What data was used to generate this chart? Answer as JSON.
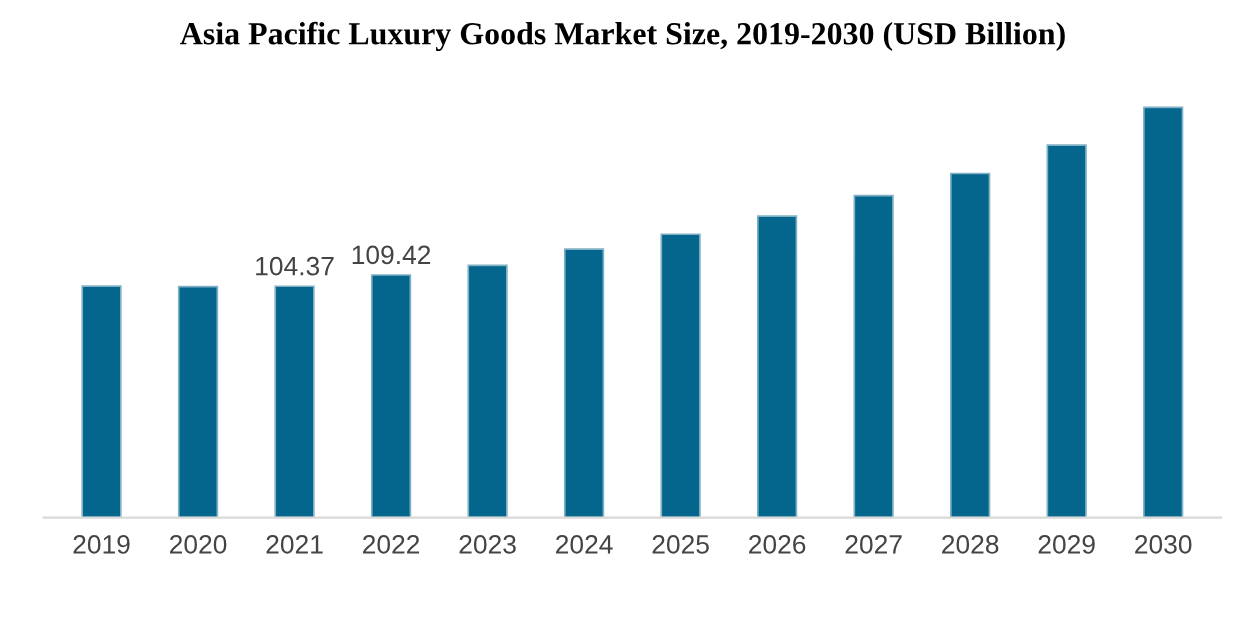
{
  "chart_data": {
    "type": "bar",
    "title": "Asia Pacific Luxury Goods Market Size, 2019-2030 (USD Billion)",
    "categories": [
      "2019",
      "2020",
      "2021",
      "2022",
      "2023",
      "2024",
      "2025",
      "2026",
      "2027",
      "2028",
      "2029",
      "2030"
    ],
    "values": [
      104.4,
      104.2,
      104.37,
      109.42,
      113.8,
      121.1,
      127.8,
      136.0,
      145.2,
      155.2,
      168.0,
      185.0
    ],
    "value_labels": [
      null,
      null,
      "104.37",
      "109.42",
      null,
      null,
      null,
      null,
      null,
      null,
      null,
      null
    ],
    "color": "#05668d",
    "grid": false,
    "legend": false
  }
}
